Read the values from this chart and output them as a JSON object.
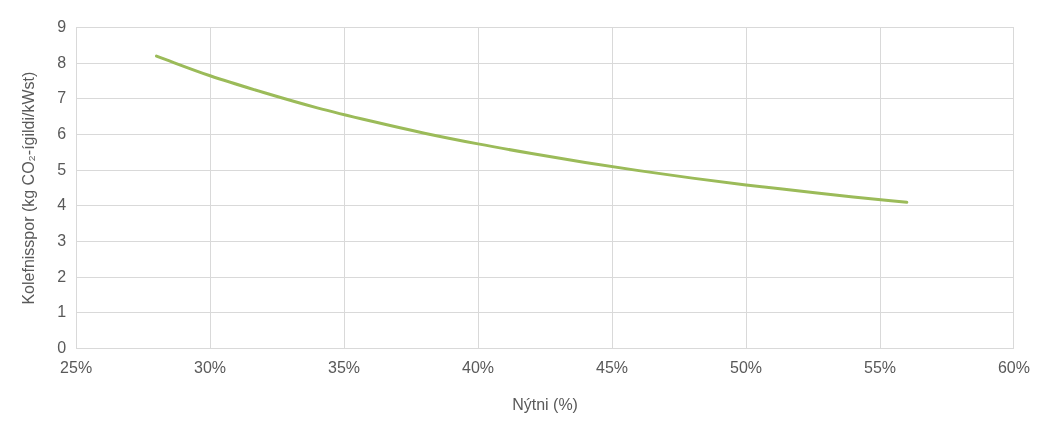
{
  "chart_data": {
    "type": "line",
    "xlabel": "Nýtni (%)",
    "ylabel": "Kolefnisspor (kg CO₂-ígildi/kWst)",
    "x": [
      28,
      30,
      32,
      34,
      36,
      38,
      40,
      42,
      44,
      46,
      48,
      50,
      52,
      54,
      56
    ],
    "series": [
      {
        "color": "#9bbb59",
        "values": [
          8.2,
          7.65,
          7.18,
          6.75,
          6.38,
          6.04,
          5.74,
          5.47,
          5.22,
          4.99,
          4.78,
          4.59,
          4.42,
          4.25,
          4.1
        ]
      }
    ],
    "xlim": [
      25,
      60
    ],
    "xticks": [
      {
        "value": 25,
        "label": "25%"
      },
      {
        "value": 30,
        "label": "30%"
      },
      {
        "value": 35,
        "label": "35%"
      },
      {
        "value": 40,
        "label": "40%"
      },
      {
        "value": 45,
        "label": "45%"
      },
      {
        "value": 50,
        "label": "50%"
      },
      {
        "value": 55,
        "label": "55%"
      },
      {
        "value": 60,
        "label": "60%"
      }
    ],
    "ylim": [
      0,
      9
    ],
    "yticks": [
      0,
      1,
      2,
      3,
      4,
      5,
      6,
      7,
      8,
      9
    ],
    "grid": true,
    "legend": false,
    "marker": "none",
    "line_style": "solid"
  }
}
